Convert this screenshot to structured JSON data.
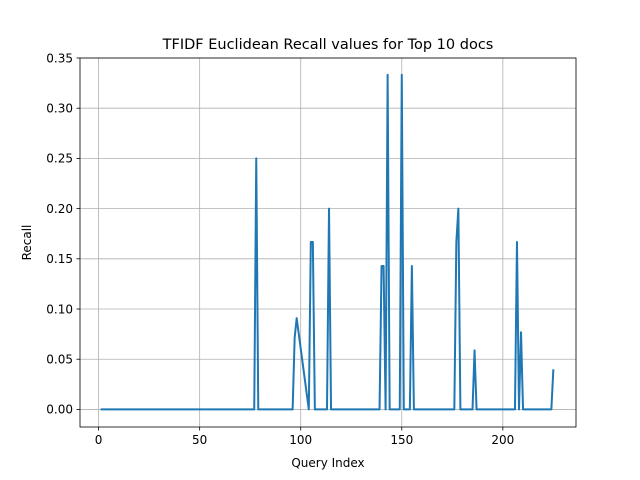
{
  "chart_data": {
    "type": "line",
    "title": "TFIDF Euclidean Recall values for Top 10 docs",
    "xlabel": "Query Index",
    "ylabel": "Recall",
    "xlim": [
      -9.2,
      236.2
    ],
    "ylim": [
      -0.0175,
      0.35
    ],
    "xticks": [
      0,
      50,
      100,
      150,
      200
    ],
    "xtick_labels": [
      "0",
      "50",
      "100",
      "150",
      "200"
    ],
    "yticks": [
      0.0,
      0.05,
      0.1,
      0.15,
      0.2,
      0.25,
      0.3,
      0.35
    ],
    "ytick_labels": [
      "0.00",
      "0.05",
      "0.10",
      "0.15",
      "0.20",
      "0.25",
      "0.30",
      "0.35"
    ],
    "grid": true,
    "series": [
      {
        "color": "#1f77b4",
        "x": [
          1,
          77,
          78,
          79,
          96,
          97,
          98,
          104,
          105,
          106,
          107,
          113,
          114,
          115,
          139,
          140,
          141,
          142,
          143,
          144,
          149,
          150,
          151,
          154,
          155,
          156,
          176,
          177,
          178,
          179,
          185,
          186,
          187,
          206,
          207,
          208,
          209,
          210,
          224,
          225
        ],
        "y": [
          0,
          0,
          0.25,
          0,
          0,
          0.0714,
          0.0909,
          0,
          0.1667,
          0.1667,
          0,
          0,
          0.2,
          0,
          0,
          0.1429,
          0.1429,
          0,
          0.3333,
          0,
          0,
          0.3333,
          0,
          0,
          0.1429,
          0,
          0,
          0.1667,
          0.2,
          0,
          0,
          0.0588,
          0,
          0,
          0.1667,
          0,
          0.0769,
          0,
          0,
          0.04
        ]
      }
    ]
  }
}
